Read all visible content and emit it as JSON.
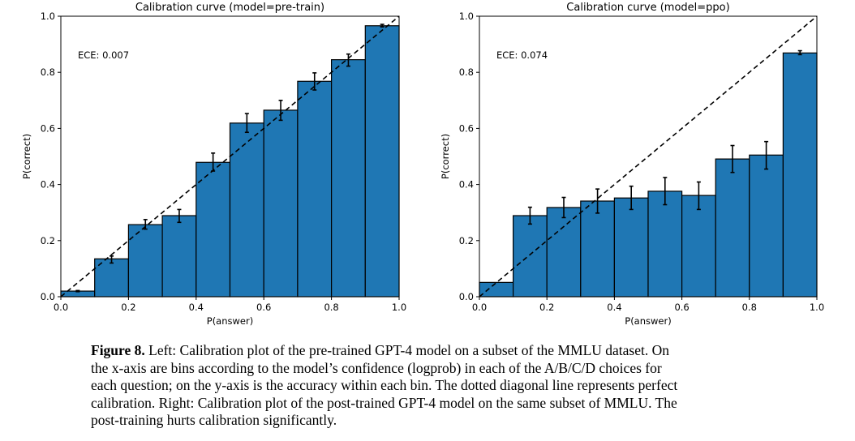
{
  "chart_data": [
    {
      "type": "bar",
      "title": "Calibration curve (model=pre-train)",
      "xlabel": "P(answer)",
      "ylabel": "P(correct)",
      "xlim": [
        0,
        1
      ],
      "ylim": [
        0,
        1
      ],
      "xticks": [
        "0.0",
        "0.2",
        "0.4",
        "0.6",
        "0.8",
        "1.0"
      ],
      "yticks": [
        "0.0",
        "0.2",
        "0.4",
        "0.6",
        "0.8",
        "1.0"
      ],
      "annotation": "ECE: 0.007",
      "bin_edges": [
        0,
        0.1,
        0.2,
        0.3,
        0.4,
        0.5,
        0.6,
        0.7,
        0.8,
        0.9,
        1.0
      ],
      "values": [
        0.02,
        0.135,
        0.257,
        0.289,
        0.479,
        0.619,
        0.665,
        0.768,
        0.845,
        0.966
      ],
      "error_low": [
        0.018,
        0.12,
        0.241,
        0.265,
        0.448,
        0.586,
        0.629,
        0.737,
        0.822,
        0.962
      ],
      "error_high": [
        0.022,
        0.145,
        0.275,
        0.311,
        0.512,
        0.653,
        0.7,
        0.798,
        0.865,
        0.971
      ],
      "reference_line": "dashed diagonal y=x",
      "bar_color": "#1f77b4"
    },
    {
      "type": "bar",
      "title": "Calibration curve (model=ppo)",
      "xlabel": "P(answer)",
      "ylabel": "P(correct)",
      "xlim": [
        0,
        1
      ],
      "ylim": [
        0,
        1
      ],
      "xticks": [
        "0.0",
        "0.2",
        "0.4",
        "0.6",
        "0.8",
        "1.0"
      ],
      "yticks": [
        "0.0",
        "0.2",
        "0.4",
        "0.6",
        "0.8",
        "1.0"
      ],
      "annotation": "ECE: 0.074",
      "bin_edges": [
        0,
        0.1,
        0.2,
        0.3,
        0.4,
        0.5,
        0.6,
        0.7,
        0.8,
        0.9,
        1.0
      ],
      "values": [
        0.051,
        0.289,
        0.318,
        0.341,
        0.352,
        0.376,
        0.361,
        0.491,
        0.505,
        0.869
      ],
      "error_low": [
        0.051,
        0.259,
        0.282,
        0.298,
        0.311,
        0.328,
        0.311,
        0.443,
        0.455,
        0.863
      ],
      "error_high": [
        0.051,
        0.319,
        0.354,
        0.384,
        0.394,
        0.425,
        0.409,
        0.539,
        0.553,
        0.877
      ],
      "reference_line": "dashed diagonal y=x",
      "bar_color": "#1f77b4"
    }
  ],
  "caption": {
    "label": "Figure 8.",
    "lines": [
      " Left: Calibration plot of the pre-trained GPT-4 model on a subset of the MMLU dataset. On",
      "the x-axis are bins according to the model’s confidence (logprob) in each of the A/B/C/D choices for",
      "each question; on the y-axis is the accuracy within each bin. The dotted diagonal line represents perfect",
      "calibration. Right: Calibration plot of the post-trained GPT-4 model on the same subset of MMLU. The",
      "post-training hurts calibration significantly."
    ]
  }
}
